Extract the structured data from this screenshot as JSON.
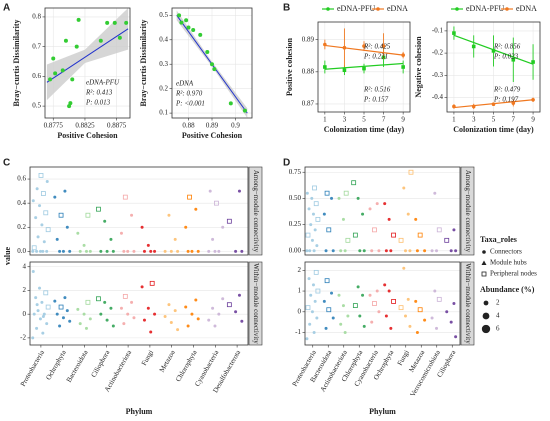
{
  "panel_labels": [
    "A",
    "B",
    "C",
    "D"
  ],
  "chart_data": [
    {
      "type": "scatter",
      "x_label": "Positive Cohesion",
      "y_label": "Bray−curtis Dissimilarity",
      "xlim": [
        0.8762,
        0.8896
      ],
      "ylim": [
        0.46,
        0.83
      ],
      "xticks": [
        0.8775,
        0.8825,
        0.8875
      ],
      "yticks": [
        0.5,
        0.6,
        0.7,
        0.8
      ],
      "grid": true,
      "x": [
        0.877,
        0.8775,
        0.8778,
        0.879,
        0.8795,
        0.88,
        0.8802,
        0.8805,
        0.8812,
        0.8815,
        0.885,
        0.886,
        0.8872,
        0.888,
        0.889
      ],
      "y": [
        0.59,
        0.66,
        0.61,
        0.62,
        0.72,
        0.5,
        0.51,
        0.59,
        0.7,
        0.79,
        0.72,
        0.78,
        0.78,
        0.73,
        0.78
      ],
      "fit": {
        "x": [
          0.8765,
          0.8893
        ],
        "y": [
          0.58,
          0.76
        ]
      },
      "band": {
        "x": [
          0.8765,
          0.8825,
          0.8893
        ],
        "lower": [
          0.52,
          0.645,
          0.69
        ],
        "upper": [
          0.64,
          0.69,
          0.83
        ]
      },
      "point_color": "#33cc33",
      "line_color": "#2233cc",
      "band_color": "#cccccc",
      "annotations": [
        "eDNA-PFU",
        "R²: 0.413",
        "P: 0.013"
      ]
    },
    {
      "type": "scatter",
      "x_label": "Positive Cohesion",
      "y_label": "Bray−curtis Dissimilarity",
      "xlim": [
        0.873,
        0.907
      ],
      "ylim": [
        0.08,
        0.53
      ],
      "xticks": [
        0.88,
        0.89,
        0.9
      ],
      "yticks": [
        0.1,
        0.2,
        0.3,
        0.4,
        0.5
      ],
      "grid": true,
      "x": [
        0.876,
        0.877,
        0.879,
        0.88,
        0.882,
        0.885,
        0.888,
        0.89,
        0.891,
        0.898,
        0.904
      ],
      "y": [
        0.5,
        0.47,
        0.48,
        0.45,
        0.44,
        0.42,
        0.35,
        0.3,
        0.28,
        0.14,
        0.11
      ],
      "fit": {
        "x": [
          0.875,
          0.905
        ],
        "y": [
          0.5,
          0.1
        ]
      },
      "band": {
        "x": [
          0.875,
          0.89,
          0.905
        ],
        "lower": [
          0.48,
          0.29,
          0.08
        ],
        "upper": [
          0.52,
          0.31,
          0.12
        ]
      },
      "point_color": "#33cc33",
      "line_color": "#2233cc",
      "band_color": "#cccccc",
      "annotations": [
        "eDNA",
        "R²: 0.970",
        "P: <0.001"
      ]
    },
    {
      "type": "line",
      "x_label": "Colonization time  (day)",
      "y_label": "Positive cohesion",
      "x": [
        1,
        3,
        5,
        7,
        9
      ],
      "xlim": [
        0.3,
        9.7
      ],
      "xticks": [
        1,
        3,
        5,
        7,
        9
      ],
      "ylim": [
        0.8675,
        0.8955
      ],
      "yticks": [
        0.87,
        0.88,
        0.89
      ],
      "grid": true,
      "series": [
        {
          "name": "eDNA-PFU",
          "color": "#22cc22",
          "values": [
            0.8815,
            0.8805,
            0.881,
            0.8845,
            0.8815
          ],
          "errors": [
            0.002,
            0.0015,
            0.0015,
            0.003,
            0.002
          ],
          "fit": [
            0.8808,
            0.8826
          ]
        },
        {
          "name": "eDNA",
          "color": "#f07820",
          "values": [
            0.8885,
            0.8875,
            0.888,
            0.888,
            0.8852
          ],
          "errors": [
            0.0015,
            0.006,
            0.0015,
            0.004,
            0.001
          ],
          "fit": [
            0.8882,
            0.8852
          ]
        }
      ],
      "annotations": [
        "R²: 0.425",
        "P: 0.231",
        "R²: 0.516",
        "P: 0.157"
      ]
    },
    {
      "type": "line",
      "x_label": "Colonization time  (day)",
      "y_label": "Negative cohesion",
      "x": [
        1,
        3,
        5,
        7,
        9
      ],
      "xlim": [
        0.3,
        9.7
      ],
      "xticks": [
        1,
        3,
        5,
        7,
        9
      ],
      "ylim": [
        -0.465,
        -0.06
      ],
      "yticks": [
        -0.4,
        -0.3,
        -0.2,
        -0.1
      ],
      "grid": true,
      "series": [
        {
          "name": "eDNA-PFU",
          "color": "#22cc22",
          "values": [
            -0.11,
            -0.17,
            -0.19,
            -0.23,
            -0.24
          ],
          "errors": [
            0.03,
            0.05,
            0.07,
            0.1,
            0.08
          ],
          "fit": [
            -0.12,
            -0.25
          ]
        },
        {
          "name": "eDNA",
          "color": "#f07820",
          "values": [
            -0.44,
            -0.44,
            -0.43,
            -0.425,
            -0.41
          ],
          "errors": [
            0.01,
            0.012,
            0.008,
            0.015,
            0.01
          ],
          "fit": [
            -0.445,
            -0.41
          ]
        }
      ],
      "annotations": [
        "R²: 0.856",
        "P: 0.023",
        "R²: 0.479",
        "P: 0.197"
      ]
    },
    {
      "type": "strip",
      "x_label": "Phylum",
      "y_label": "value",
      "facets": [
        "Among−module connectivity",
        "Within−module connectivity"
      ],
      "ylim": [
        [
          -0.03,
          0.7
        ],
        [
          -2.6,
          4.4
        ]
      ],
      "yticks": [
        [
          {
            "value": 0,
            "label": "0.0"
          },
          0.2,
          0.4,
          0.6
        ],
        [
          -2,
          0,
          2,
          4
        ]
      ],
      "phyla": [
        {
          "name": "Proteobacteria",
          "color": "#9ecae1",
          "among": [
            0,
            0,
            0,
            0,
            0,
            0.03,
            0.08,
            0.12,
            0.18,
            0.22,
            0.28,
            0.32,
            0.38,
            0.42,
            0.48,
            0.52,
            0.58,
            0.63
          ],
          "within": [
            -2,
            -1.6,
            -1.2,
            -0.8,
            -0.4,
            0,
            0,
            0.3,
            0.6,
            1,
            1.4,
            1.8,
            2.2,
            3.6,
            -0.2,
            0.8
          ]
        },
        {
          "name": "Ochrophyta",
          "color": "#2c7fb8",
          "among": [
            0,
            0,
            0,
            0.1,
            0.2,
            0.3,
            0.45,
            0.5
          ],
          "within": [
            -1,
            -0.6,
            -0.3,
            0,
            0.3,
            0.6,
            1.1,
            1.4
          ]
        },
        {
          "name": "Bacteroidota",
          "color": "#a1d99b",
          "among": [
            0,
            0,
            0,
            0.05,
            0.15,
            0.3
          ],
          "within": [
            -1.2,
            -0.8,
            -0.4,
            0,
            0.4,
            1
          ]
        },
        {
          "name": "Ciliophora",
          "color": "#31a354",
          "among": [
            0,
            0,
            0,
            0.1,
            0.25,
            0.35
          ],
          "within": [
            -1,
            -0.5,
            0,
            0.5,
            1,
            1.3
          ]
        },
        {
          "name": "Actinobacteriota",
          "color": "#f4a6a6",
          "among": [
            0,
            0,
            0,
            0.15,
            0.3,
            0.45
          ],
          "within": [
            -0.8,
            -0.3,
            0,
            0.5,
            1,
            1.5
          ]
        },
        {
          "name": "Fungi",
          "color": "#e31a1c",
          "among": [
            0,
            0,
            0,
            0.05,
            0.2
          ],
          "within": [
            -1.5,
            -0.5,
            0,
            0.5,
            2.3,
            2.6
          ]
        },
        {
          "name": "Metazoa",
          "color": "#fdbf6f",
          "among": [
            0,
            0,
            0,
            0.1,
            0.3
          ],
          "within": [
            -1.3,
            -0.7,
            -0.2,
            0.3,
            0.8
          ]
        },
        {
          "name": "Chlorophyta",
          "color": "#ff7f00",
          "among": [
            0,
            0,
            0,
            0.2,
            0.35,
            0.45
          ],
          "within": [
            -1,
            -0.4,
            0,
            0.6,
            1.2
          ]
        },
        {
          "name": "Cyanobacteria",
          "color": "#cab2d6",
          "among": [
            0,
            0,
            0,
            0.1,
            0.2,
            0.4,
            0.5
          ],
          "within": [
            -1,
            -0.5,
            0,
            0.5,
            1.3
          ]
        },
        {
          "name": "Desulfobacterota",
          "color": "#6a3d9a",
          "among": [
            0,
            0,
            0.25,
            0.5
          ],
          "within": [
            -0.6,
            0.2,
            0.8,
            1.6
          ]
        }
      ]
    },
    {
      "type": "strip",
      "x_label": "Phylum",
      "facets": [
        "Among−module connectivity",
        "Within−module connectivity"
      ],
      "ylim": [
        [
          -0.04,
          0.8
        ],
        [
          -1.6,
          2.4
        ]
      ],
      "yticks": [
        [
          {
            "value": 0,
            "label": "0.00"
          },
          {
            "value": 0.25,
            "label": "0.25"
          },
          {
            "value": 0.5,
            "label": "0.50"
          },
          {
            "value": 0.75,
            "label": "0.75"
          }
        ],
        [
          -1,
          0,
          1,
          2
        ]
      ],
      "phyla": [
        {
          "name": "Proteobacteria",
          "color": "#9ecae1",
          "among": [
            0,
            0,
            0,
            0.05,
            0.1,
            0.15,
            0.2,
            0.25,
            0.3,
            0.35,
            0.4,
            0.45,
            0.5,
            0.55,
            0.6
          ],
          "within": [
            -1.3,
            -1,
            -0.6,
            -0.3,
            0,
            0.2,
            0.5,
            0.8,
            1,
            1.3,
            1.6,
            1.9
          ]
        },
        {
          "name": "Bacteroidota",
          "color": "#2c7fb8",
          "among": [
            0,
            0,
            0.2,
            0.35,
            0.5,
            0.55
          ],
          "within": [
            -0.8,
            -0.3,
            0.1,
            0.5,
            0.9,
            1.5
          ]
        },
        {
          "name": "Actinobacteriota",
          "color": "#a1d99b",
          "among": [
            0,
            0,
            0.1,
            0.3,
            0.5,
            0.55
          ],
          "within": [
            -1,
            -0.6,
            -0.2,
            0.3,
            0.8
          ]
        },
        {
          "name": "Chlorophyta",
          "color": "#31a354",
          "among": [
            0,
            0,
            0.15,
            0.35,
            0.5,
            0.65
          ],
          "within": [
            -0.7,
            -0.2,
            0.3,
            0.8,
            1.2
          ]
        },
        {
          "name": "Cyanobacteria",
          "color": "#f4a6a6",
          "among": [
            0,
            0,
            0.2,
            0.4,
            0.45
          ],
          "within": [
            -0.5,
            0,
            0.4,
            0.8,
            1
          ]
        },
        {
          "name": "Ochrophyta",
          "color": "#e31a1c",
          "among": [
            0,
            0,
            0.15,
            0.3,
            0.45
          ],
          "within": [
            -0.8,
            -0.2,
            0.5,
            1,
            1.3
          ]
        },
        {
          "name": "Fungi",
          "color": "#fdbf6f",
          "among": [
            0,
            0,
            0.1,
            0.35,
            0.6,
            0.75
          ],
          "within": [
            -0.7,
            -0.2,
            0.2,
            0.6,
            2.1
          ]
        },
        {
          "name": "Metazoa",
          "color": "#ff7f00",
          "among": [
            0,
            0,
            0.15,
            0.3
          ],
          "within": [
            -1,
            -0.4,
            0.1,
            0.5
          ]
        },
        {
          "name": "Verrucomicrobiota",
          "color": "#cab2d6",
          "among": [
            0,
            0,
            0.2,
            0.55
          ],
          "within": [
            -0.8,
            -0.3,
            0.6,
            1
          ]
        },
        {
          "name": "Ciliophora",
          "color": "#6a3d9a",
          "among": [
            0,
            0,
            0.1,
            0.2
          ],
          "within": [
            -1.2,
            -0.5,
            0,
            0.4
          ]
        }
      ],
      "legend": {
        "title": "Taxa_roles",
        "items": [
          "Connectors",
          "Module hubs",
          "Peripheral nodes"
        ]
      },
      "size_legend": {
        "title": "Abundance (%)",
        "values": [
          2,
          4,
          6
        ]
      }
    }
  ]
}
